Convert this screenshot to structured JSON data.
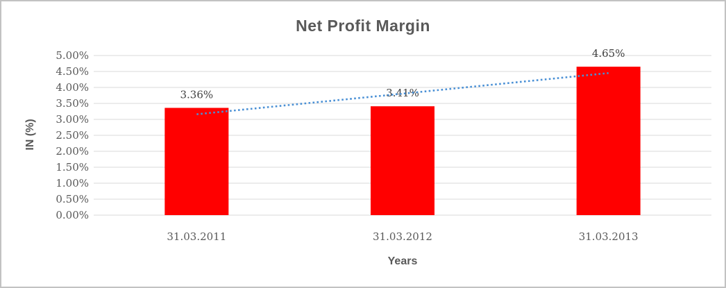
{
  "chart_data": {
    "type": "bar",
    "title": "Net Profit Margin",
    "xlabel": "Years",
    "ylabel": "IN (%)",
    "categories": [
      "31.03.2011",
      "31.03.2012",
      "31.03.2013"
    ],
    "values": [
      3.36,
      3.41,
      4.65
    ],
    "data_labels": [
      "3.36%",
      "3.41%",
      "4.65%"
    ],
    "ylim": [
      0,
      5
    ],
    "y_step": 0.5,
    "y_tick_labels": [
      "5.00%",
      "4.50%",
      "4.00%",
      "3.50%",
      "3.00%",
      "2.50%",
      "2.00%",
      "1.50%",
      "1.00%",
      "0.50%",
      "0.00%"
    ],
    "grid": true,
    "legend": "none",
    "bar_color": "#ff0000",
    "gridline_color": "#d9d9d9",
    "axis_text_color": "#595959",
    "data_label_color": "#3f3f3f",
    "trendline": {
      "type": "linear",
      "style": "dotted",
      "color": "#4a90d5",
      "start_value": 3.16,
      "end_value": 4.45
    }
  }
}
